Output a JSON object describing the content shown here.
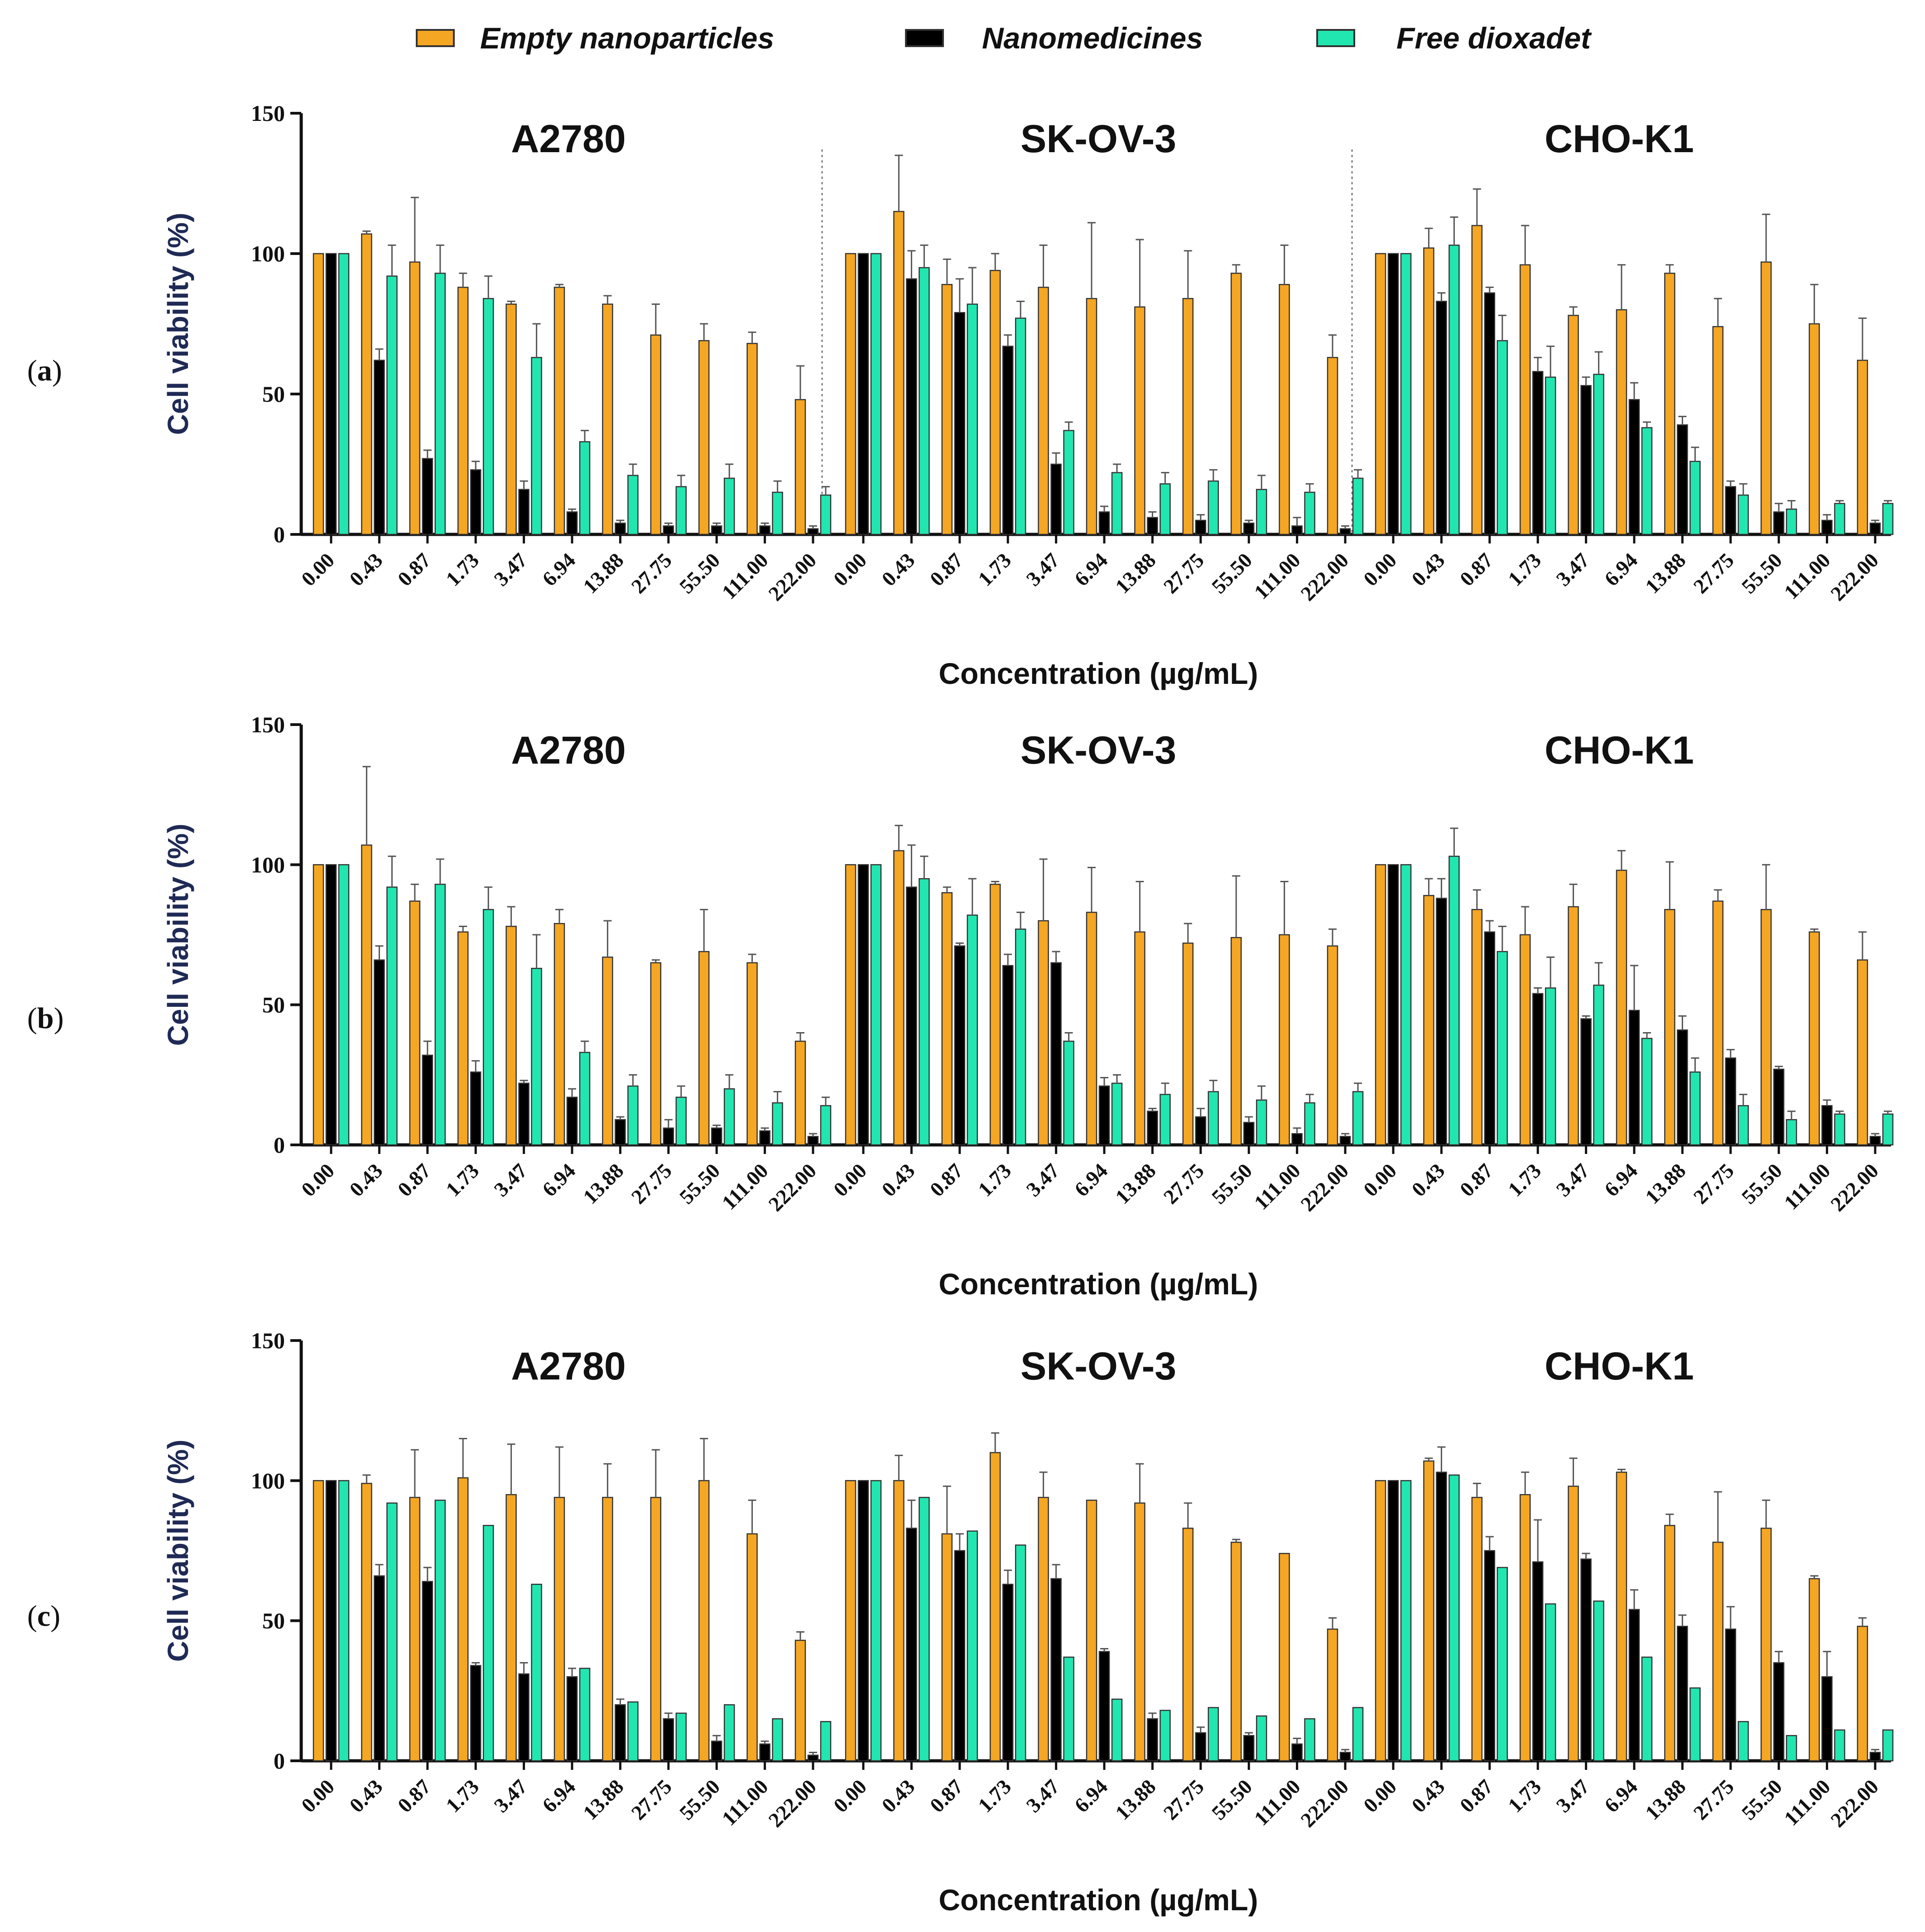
{
  "legend": [
    {
      "label": "Empty nanoparticles",
      "color": "#f5a623"
    },
    {
      "label": "Nanomedicines",
      "color": "#000000"
    },
    {
      "label": "Free dioxadet",
      "color": "#22e6b0"
    }
  ],
  "colors": {
    "empty": "#f5a623",
    "nano": "#000000",
    "free": "#22e6b0",
    "errorbar": "#555555",
    "axis": "#111111",
    "ylabel": "#1f2a55"
  },
  "chart_data": [
    {
      "type": "bar",
      "panel_label": "a",
      "ylabel": "Cell viability (%)",
      "xlabel": "Concentration (µg/mL)",
      "ylim": [
        0,
        150
      ],
      "yticks": [
        "0",
        "50",
        "100",
        "150"
      ],
      "categories": [
        "0.00",
        "0.43",
        "0.87",
        "1.73",
        "3.47",
        "6.94",
        "13.88",
        "27.75",
        "55.50",
        "111.00",
        "222.00"
      ],
      "groups": [
        {
          "title": "A2780",
          "series": [
            {
              "name": "Empty nanoparticles",
              "values": [
                100,
                107,
                97,
                88,
                82,
                88,
                82,
                71,
                69,
                68,
                48
              ],
              "errors": [
                0,
                1,
                23,
                5,
                1,
                1,
                3,
                11,
                6,
                4,
                12
              ]
            },
            {
              "name": "Nanomedicines",
              "values": [
                100,
                62,
                27,
                23,
                16,
                8,
                4,
                3,
                3,
                3,
                2
              ],
              "errors": [
                0,
                4,
                3,
                3,
                3,
                1,
                1,
                1,
                1,
                1,
                1
              ]
            },
            {
              "name": "Free dioxadet",
              "values": [
                100,
                92,
                93,
                84,
                63,
                33,
                21,
                17,
                20,
                15,
                14
              ],
              "errors": [
                0,
                11,
                10,
                8,
                12,
                4,
                4,
                4,
                5,
                4,
                3
              ]
            }
          ]
        },
        {
          "title": "SK-OV-3",
          "series": [
            {
              "name": "Empty nanoparticles",
              "values": [
                100,
                115,
                89,
                94,
                88,
                84,
                81,
                84,
                93,
                89,
                63
              ],
              "errors": [
                0,
                20,
                9,
                6,
                15,
                27,
                24,
                17,
                3,
                14,
                8
              ]
            },
            {
              "name": "Nanomedicines",
              "values": [
                100,
                91,
                79,
                67,
                25,
                8,
                6,
                5,
                4,
                3,
                2
              ],
              "errors": [
                0,
                10,
                12,
                4,
                4,
                2,
                2,
                2,
                1,
                3,
                1
              ]
            },
            {
              "name": "Free dioxadet",
              "values": [
                100,
                95,
                82,
                77,
                37,
                22,
                18,
                19,
                16,
                15,
                20
              ],
              "errors": [
                0,
                8,
                13,
                6,
                3,
                3,
                4,
                4,
                5,
                3,
                3
              ]
            }
          ]
        },
        {
          "title": "CHO-K1",
          "series": [
            {
              "name": "Empty nanoparticles",
              "values": [
                100,
                102,
                110,
                96,
                78,
                80,
                93,
                74,
                97,
                75,
                62
              ],
              "errors": [
                0,
                7,
                13,
                14,
                3,
                16,
                3,
                10,
                17,
                14,
                15
              ]
            },
            {
              "name": "Nanomedicines",
              "values": [
                100,
                83,
                86,
                58,
                53,
                48,
                39,
                17,
                8,
                5,
                4
              ],
              "errors": [
                0,
                3,
                2,
                5,
                3,
                6,
                3,
                2,
                3,
                2,
                1
              ]
            },
            {
              "name": "Free dioxadet",
              "values": [
                100,
                103,
                69,
                56,
                57,
                38,
                26,
                14,
                9,
                11,
                11
              ],
              "errors": [
                0,
                10,
                9,
                11,
                8,
                2,
                5,
                4,
                3,
                1,
                1
              ]
            }
          ]
        }
      ]
    },
    {
      "type": "bar",
      "panel_label": "b",
      "ylabel": "Cell viability (%)",
      "xlabel": "Concentration (µg/mL)",
      "ylim": [
        0,
        150
      ],
      "yticks": [
        "0",
        "50",
        "100",
        "150"
      ],
      "categories": [
        "0.00",
        "0.43",
        "0.87",
        "1.73",
        "3.47",
        "6.94",
        "13.88",
        "27.75",
        "55.50",
        "111.00",
        "222.00"
      ],
      "groups": [
        {
          "title": "A2780",
          "series": [
            {
              "name": "Empty nanoparticles",
              "values": [
                100,
                107,
                87,
                76,
                78,
                79,
                67,
                65,
                69,
                65,
                37
              ],
              "errors": [
                0,
                28,
                6,
                2,
                7,
                5,
                13,
                1,
                15,
                3,
                3
              ]
            },
            {
              "name": "Nanomedicines",
              "values": [
                100,
                66,
                32,
                26,
                22,
                17,
                9,
                6,
                6,
                5,
                3
              ],
              "errors": [
                0,
                5,
                5,
                4,
                1,
                3,
                1,
                3,
                1,
                1,
                1
              ]
            },
            {
              "name": "Free dioxadet",
              "values": [
                100,
                92,
                93,
                84,
                63,
                33,
                21,
                17,
                20,
                15,
                14
              ],
              "errors": [
                0,
                11,
                9,
                8,
                12,
                4,
                4,
                4,
                5,
                4,
                3
              ]
            }
          ]
        },
        {
          "title": "SK-OV-3",
          "series": [
            {
              "name": "Empty nanoparticles",
              "values": [
                100,
                105,
                90,
                93,
                80,
                83,
                76,
                72,
                74,
                75,
                71
              ],
              "errors": [
                0,
                9,
                2,
                1,
                22,
                16,
                18,
                7,
                22,
                19,
                6
              ]
            },
            {
              "name": "Nanomedicines",
              "values": [
                100,
                92,
                71,
                64,
                65,
                21,
                12,
                10,
                8,
                4,
                3
              ],
              "errors": [
                0,
                15,
                1,
                4,
                4,
                3,
                1,
                3,
                2,
                2,
                1
              ]
            },
            {
              "name": "Free dioxadet",
              "values": [
                100,
                95,
                82,
                77,
                37,
                22,
                18,
                19,
                16,
                15,
                19
              ],
              "errors": [
                0,
                8,
                13,
                6,
                3,
                3,
                4,
                4,
                5,
                3,
                3
              ]
            }
          ]
        },
        {
          "title": "CHO-K1",
          "series": [
            {
              "name": "Empty nanoparticles",
              "values": [
                100,
                89,
                84,
                75,
                85,
                98,
                84,
                87,
                84,
                76,
                66
              ],
              "errors": [
                0,
                6,
                7,
                10,
                8,
                7,
                17,
                4,
                16,
                1,
                10
              ]
            },
            {
              "name": "Nanomedicines",
              "values": [
                100,
                88,
                76,
                54,
                45,
                48,
                41,
                31,
                27,
                14,
                3
              ],
              "errors": [
                0,
                7,
                4,
                2,
                1,
                16,
                5,
                3,
                1,
                2,
                1
              ]
            },
            {
              "name": "Free dioxadet",
              "values": [
                100,
                103,
                69,
                56,
                57,
                38,
                26,
                14,
                9,
                11,
                11
              ],
              "errors": [
                0,
                10,
                9,
                11,
                8,
                2,
                5,
                4,
                3,
                1,
                1
              ]
            }
          ]
        }
      ]
    },
    {
      "type": "bar",
      "panel_label": "c",
      "ylabel": "Cell viability (%)",
      "xlabel": "Concentration (µg/mL)",
      "ylim": [
        0,
        150
      ],
      "yticks": [
        "0",
        "50",
        "100",
        "150"
      ],
      "categories": [
        "0.00",
        "0.43",
        "0.87",
        "1.73",
        "3.47",
        "6.94",
        "13.88",
        "27.75",
        "55.50",
        "111.00",
        "222.00"
      ],
      "groups": [
        {
          "title": "A2780",
          "series": [
            {
              "name": "Empty nanoparticles",
              "values": [
                100,
                99,
                94,
                101,
                95,
                94,
                94,
                94,
                100,
                81,
                43
              ],
              "errors": [
                0,
                3,
                17,
                14,
                18,
                18,
                12,
                17,
                15,
                12,
                3
              ]
            },
            {
              "name": "Nanomedicines",
              "values": [
                100,
                66,
                64,
                34,
                31,
                30,
                20,
                15,
                7,
                6,
                2
              ],
              "errors": [
                0,
                4,
                5,
                1,
                4,
                3,
                2,
                2,
                2,
                1,
                1
              ]
            },
            {
              "name": "Free dioxadet",
              "values": [
                100,
                92,
                93,
                84,
                63,
                33,
                21,
                17,
                20,
                15,
                14
              ],
              "errors": [
                0,
                0,
                0,
                0,
                0,
                0,
                0,
                0,
                0,
                0,
                0
              ]
            }
          ]
        },
        {
          "title": "SK-OV-3",
          "series": [
            {
              "name": "Empty nanoparticles",
              "values": [
                100,
                100,
                81,
                110,
                94,
                93,
                92,
                83,
                78,
                74,
                47
              ],
              "errors": [
                0,
                9,
                17,
                7,
                9,
                0,
                14,
                9,
                1,
                0,
                4
              ]
            },
            {
              "name": "Nanomedicines",
              "values": [
                100,
                83,
                75,
                63,
                65,
                39,
                15,
                10,
                9,
                6,
                3
              ],
              "errors": [
                0,
                10,
                6,
                5,
                5,
                1,
                2,
                2,
                1,
                2,
                1
              ]
            },
            {
              "name": "Free dioxadet",
              "values": [
                100,
                94,
                82,
                77,
                37,
                22,
                18,
                19,
                16,
                15,
                19
              ],
              "errors": [
                0,
                0,
                0,
                0,
                0,
                0,
                0,
                0,
                0,
                0,
                0
              ]
            }
          ]
        },
        {
          "title": "CHO-K1",
          "series": [
            {
              "name": "Empty nanoparticles",
              "values": [
                100,
                107,
                94,
                95,
                98,
                103,
                84,
                78,
                83,
                65,
                48
              ],
              "errors": [
                0,
                1,
                5,
                8,
                10,
                1,
                4,
                18,
                10,
                1,
                3
              ]
            },
            {
              "name": "Nanomedicines",
              "values": [
                100,
                103,
                75,
                71,
                72,
                54,
                48,
                47,
                35,
                30,
                3
              ],
              "errors": [
                0,
                9,
                5,
                15,
                2,
                7,
                4,
                8,
                4,
                9,
                1
              ]
            },
            {
              "name": "Free dioxadet",
              "values": [
                100,
                102,
                69,
                56,
                57,
                37,
                26,
                14,
                9,
                11,
                11
              ],
              "errors": [
                0,
                0,
                0,
                0,
                0,
                0,
                0,
                0,
                0,
                0,
                0
              ]
            }
          ]
        }
      ]
    }
  ]
}
